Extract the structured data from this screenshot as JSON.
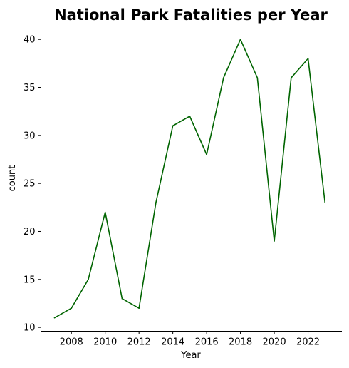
{
  "chart_data": {
    "type": "line",
    "title": "National Park Fatalities per Year",
    "xlabel": "Year",
    "ylabel": "count",
    "x": [
      2007,
      2008,
      2009,
      2010,
      2011,
      2012,
      2013,
      2014,
      2015,
      2016,
      2017,
      2018,
      2019,
      2020,
      2021,
      2022,
      2023
    ],
    "series": [
      {
        "values": [
          11,
          12,
          15,
          22,
          13,
          12,
          23,
          31,
          32,
          28,
          36,
          40,
          36,
          19,
          36,
          38,
          23
        ],
        "color": "#006400"
      }
    ],
    "xticks": [
      2008,
      2010,
      2012,
      2014,
      2016,
      2018,
      2020,
      2022
    ],
    "yticks": [
      10,
      15,
      20,
      25,
      30,
      35,
      40
    ],
    "xlim": [
      2006.2,
      2024.0
    ],
    "ylim": [
      9.6,
      41.5
    ],
    "grid": false,
    "legend": "none"
  }
}
